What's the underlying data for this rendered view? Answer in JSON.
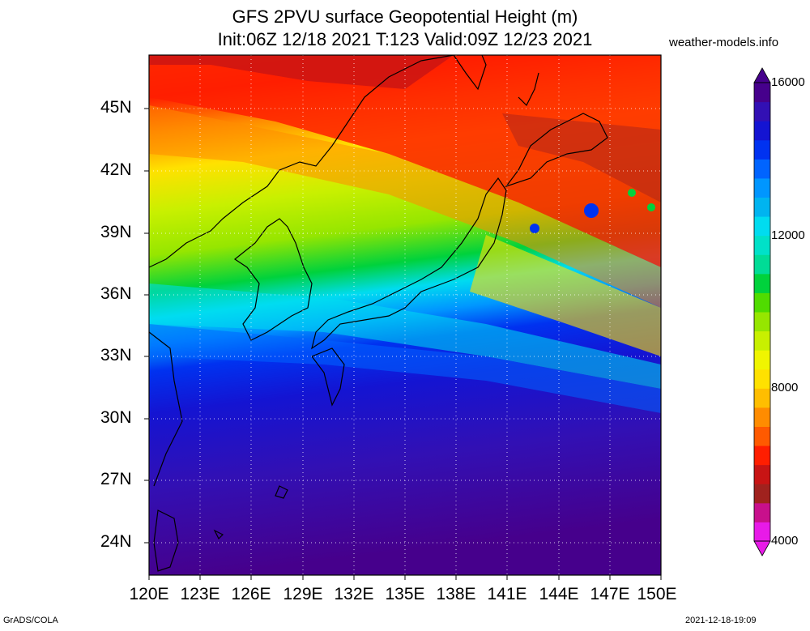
{
  "title_line1": "GFS 2PVU surface Geopotential Height (m)",
  "title_line2": "Init:06Z 12/18 2021 T:123 Valid:09Z 12/23 2021",
  "site": "weather-models.info",
  "lat_labels": [
    "45N",
    "42N",
    "39N",
    "36N",
    "33N",
    "30N",
    "27N",
    "24N"
  ],
  "lon_labels": [
    "120E",
    "123E",
    "126E",
    "129E",
    "132E",
    "135E",
    "138E",
    "141E",
    "144E",
    "147E",
    "150E"
  ],
  "colorbar": {
    "labels": [
      "16000",
      "12000",
      "8000",
      "4000"
    ],
    "colors": [
      "#e81ae8",
      "#c8108c",
      "#a0221e",
      "#c81414",
      "#ff1e00",
      "#ff5a00",
      "#ff8c00",
      "#ffbe00",
      "#ffe100",
      "#f0f500",
      "#c8f000",
      "#96e600",
      "#50dc00",
      "#00d23c",
      "#00dc96",
      "#00e1c8",
      "#00dcf0",
      "#00b4f0",
      "#0096ff",
      "#0064ff",
      "#0032f0",
      "#1414d2",
      "#3210b4",
      "#46008c"
    ]
  },
  "footer_left": "GrADS/COLA",
  "footer_right": "2021-12-18-19:09"
}
